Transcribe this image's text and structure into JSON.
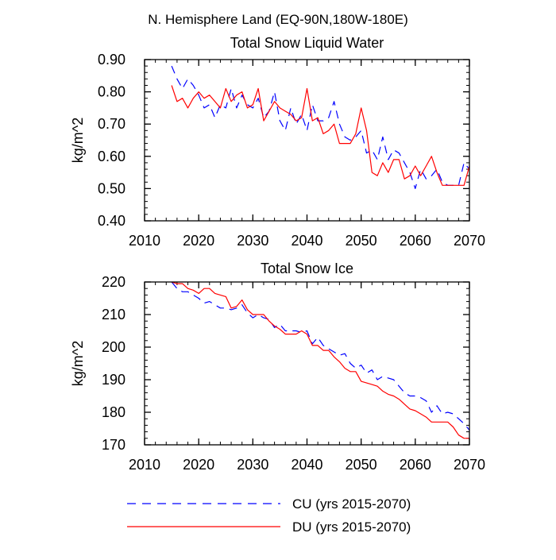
{
  "figure_title": "N. Hemisphere Land (EQ-90N,180W-180E)",
  "legend": [
    {
      "label": "CU (yrs 2015-2070)",
      "color": "#0000ff",
      "dash": "dashed"
    },
    {
      "label": "DU (yrs 2015-2070)",
      "color": "#ff0000",
      "dash": "solid"
    }
  ],
  "chart_data": [
    {
      "type": "line",
      "title": "Total Snow Liquid Water",
      "xlabel": "",
      "ylabel": "kg/m^2",
      "xlim": [
        2010,
        2070
      ],
      "ylim": [
        0.4,
        0.9
      ],
      "xticks": [
        2010,
        2020,
        2030,
        2040,
        2050,
        2060,
        2070
      ],
      "xtick_labels": [
        "2010",
        "2020",
        "2030",
        "2040",
        "2050",
        "2060",
        "2070"
      ],
      "yticks": [
        0.4,
        0.5,
        0.6,
        0.7,
        0.8,
        0.9
      ],
      "ytick_labels": [
        "0.40",
        "0.50",
        "0.60",
        "0.70",
        "0.80",
        "0.90"
      ],
      "x": [
        2015,
        2016,
        2017,
        2018,
        2019,
        2020,
        2021,
        2022,
        2023,
        2024,
        2025,
        2026,
        2027,
        2028,
        2029,
        2030,
        2031,
        2032,
        2033,
        2034,
        2035,
        2036,
        2037,
        2038,
        2039,
        2040,
        2041,
        2042,
        2043,
        2044,
        2045,
        2046,
        2047,
        2048,
        2049,
        2050,
        2051,
        2052,
        2053,
        2054,
        2055,
        2056,
        2057,
        2058,
        2059,
        2060,
        2061,
        2062,
        2063,
        2064,
        2065,
        2066,
        2067,
        2068,
        2069,
        2070
      ],
      "series": [
        {
          "name": "CU (yrs 2015-2070)",
          "color": "#0000ff",
          "dash": "dashed",
          "values": [
            0.88,
            0.84,
            0.81,
            0.84,
            0.82,
            0.79,
            0.75,
            0.76,
            0.72,
            0.76,
            0.75,
            0.81,
            0.75,
            0.79,
            0.76,
            0.75,
            0.78,
            0.72,
            0.74,
            0.8,
            0.71,
            0.68,
            0.75,
            0.7,
            0.73,
            0.68,
            0.76,
            0.71,
            0.71,
            0.72,
            0.77,
            0.7,
            0.66,
            0.65,
            0.66,
            0.68,
            0.61,
            0.62,
            0.59,
            0.66,
            0.59,
            0.62,
            0.61,
            0.58,
            0.55,
            0.5,
            0.56,
            0.53,
            0.54,
            0.56,
            0.52,
            0.51,
            0.51,
            0.51,
            0.58,
            0.56
          ]
        },
        {
          "name": "DU (yrs 2015-2070)",
          "color": "#ff0000",
          "dash": "solid",
          "values": [
            0.82,
            0.77,
            0.78,
            0.75,
            0.78,
            0.8,
            0.78,
            0.79,
            0.77,
            0.75,
            0.81,
            0.77,
            0.79,
            0.8,
            0.75,
            0.76,
            0.81,
            0.71,
            0.74,
            0.77,
            0.75,
            0.74,
            0.73,
            0.71,
            0.72,
            0.81,
            0.71,
            0.72,
            0.67,
            0.68,
            0.7,
            0.64,
            0.64,
            0.64,
            0.67,
            0.75,
            0.68,
            0.55,
            0.54,
            0.58,
            0.55,
            0.59,
            0.59,
            0.53,
            0.54,
            0.57,
            0.54,
            0.57,
            0.6,
            0.55,
            0.51,
            0.51,
            0.51,
            0.51,
            0.51,
            0.57
          ]
        }
      ]
    },
    {
      "type": "line",
      "title": "Total Snow Ice",
      "xlabel": "",
      "ylabel": "kg/m^2",
      "xlim": [
        2010,
        2070
      ],
      "ylim": [
        170,
        220
      ],
      "xticks": [
        2010,
        2020,
        2030,
        2040,
        2050,
        2060,
        2070
      ],
      "xtick_labels": [
        "2010",
        "2020",
        "2030",
        "2040",
        "2050",
        "2060",
        "2070"
      ],
      "yticks": [
        170,
        180,
        190,
        200,
        210,
        220
      ],
      "ytick_labels": [
        "170",
        "180",
        "190",
        "200",
        "210",
        "220"
      ],
      "x": [
        2015,
        2016,
        2017,
        2018,
        2019,
        2020,
        2021,
        2022,
        2023,
        2024,
        2025,
        2026,
        2027,
        2028,
        2029,
        2030,
        2031,
        2032,
        2033,
        2034,
        2035,
        2036,
        2037,
        2038,
        2039,
        2040,
        2041,
        2042,
        2043,
        2044,
        2045,
        2046,
        2047,
        2048,
        2049,
        2050,
        2051,
        2052,
        2053,
        2054,
        2055,
        2056,
        2057,
        2058,
        2059,
        2060,
        2061,
        2062,
        2063,
        2064,
        2065,
        2066,
        2067,
        2068,
        2069,
        2070
      ],
      "series": [
        {
          "name": "CU (yrs 2015-2070)",
          "color": "#0000ff",
          "dash": "dashed",
          "values": [
            220.0,
            218.0,
            217.0,
            217.0,
            216.0,
            215.0,
            213.5,
            214.0,
            213.0,
            212.0,
            212.0,
            211.5,
            212.0,
            213.0,
            210.5,
            209.0,
            210.0,
            209.0,
            208.5,
            206.0,
            207.0,
            205.0,
            205.0,
            205.0,
            204.5,
            205.0,
            201.0,
            203.0,
            200.5,
            199.5,
            198.5,
            197.5,
            198.0,
            195.0,
            193.5,
            194.5,
            192.0,
            193.0,
            190.0,
            191.0,
            190.5,
            190.0,
            188.0,
            186.0,
            185.0,
            185.0,
            184.5,
            183.5,
            180.0,
            182.0,
            179.5,
            180.0,
            179.5,
            178.0,
            176.5,
            174.5
          ]
        },
        {
          "name": "DU (yrs 2015-2070)",
          "color": "#ff0000",
          "dash": "solid",
          "values": [
            220.0,
            219.5,
            219.5,
            218.0,
            217.5,
            216.5,
            218.0,
            218.0,
            216.5,
            216.0,
            215.5,
            212.0,
            212.5,
            214.5,
            211.5,
            210.0,
            210.0,
            210.0,
            208.0,
            206.5,
            205.5,
            204.0,
            204.0,
            204.0,
            205.0,
            204.0,
            200.5,
            200.5,
            199.0,
            199.0,
            197.0,
            195.5,
            193.5,
            192.5,
            192.5,
            189.5,
            189.0,
            188.5,
            188.0,
            186.5,
            185.5,
            185.0,
            184.0,
            182.5,
            181.0,
            180.5,
            179.5,
            178.5,
            177.0,
            177.0,
            177.0,
            177.0,
            175.5,
            173.0,
            172.0,
            172.0
          ]
        }
      ]
    }
  ]
}
